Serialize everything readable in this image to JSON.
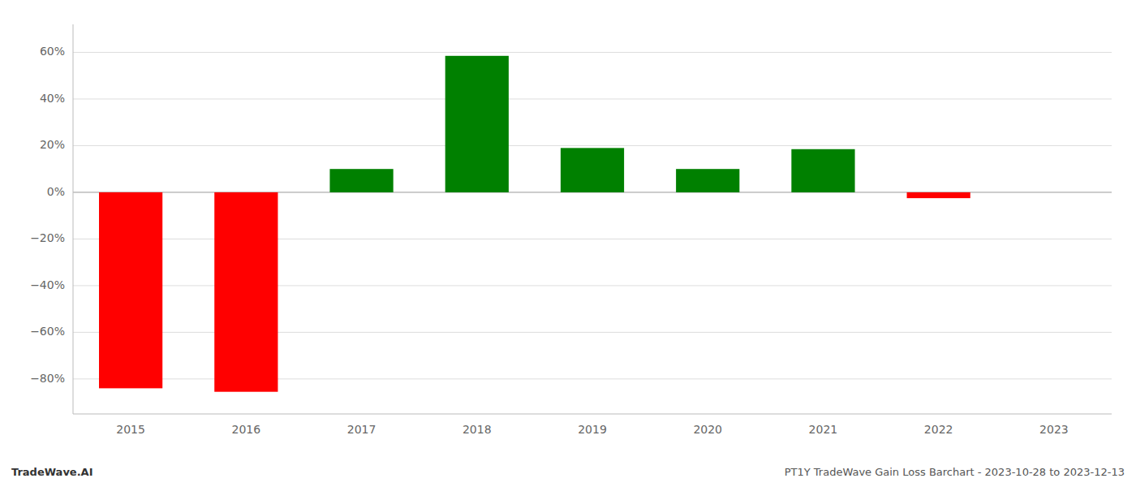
{
  "chart_data": {
    "type": "bar",
    "title": "PT1Y TradeWave Gain Loss Barchart - 2023-10-28 to 2023-12-13",
    "annotations": [
      "TradeWave.AI"
    ],
    "categories": [
      "2015",
      "2016",
      "2017",
      "2018",
      "2019",
      "2020",
      "2021",
      "2022",
      "2023"
    ],
    "values": [
      -0.84,
      -0.855,
      0.1,
      0.585,
      0.19,
      0.1,
      0.185,
      -0.025,
      0.0
    ],
    "colors": [
      "#ff0000",
      "#ff0000",
      "#008000",
      "#008000",
      "#008000",
      "#008000",
      "#008000",
      "#ff0000",
      "#008000"
    ],
    "ylim": [
      -0.95,
      0.72
    ],
    "yticks": [
      {
        "value": -0.8,
        "label": "−80%"
      },
      {
        "value": -0.6,
        "label": "−60%"
      },
      {
        "value": -0.4,
        "label": "−40%"
      },
      {
        "value": -0.2,
        "label": "−20%"
      },
      {
        "value": 0.0,
        "label": "0%"
      },
      {
        "value": 0.2,
        "label": "20%"
      },
      {
        "value": 0.4,
        "label": "40%"
      },
      {
        "value": 0.6,
        "label": "60%"
      }
    ],
    "grid": true
  }
}
